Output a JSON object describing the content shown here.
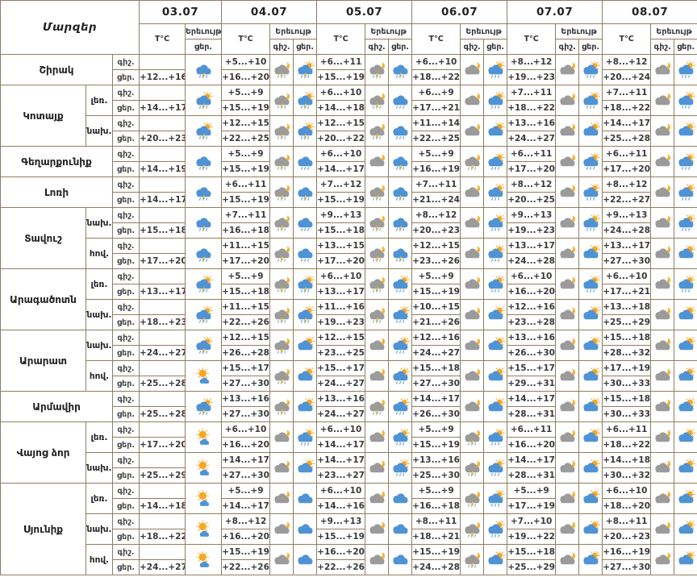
{
  "header": {
    "regions_label": "Մարզեր",
    "temp_label": "T°C",
    "phenomenon_label": "Երեւույթ",
    "night_label": "գիշ.",
    "day_label": "ցեր.",
    "dates": [
      "03.07",
      "04.07",
      "05.07",
      "06.07",
      "07.07",
      "08.07"
    ],
    "first_date_has_day_icon_only": true
  },
  "colors": {
    "border": "#8f7e60",
    "cloud_day": "#4f93d4",
    "cloud_night": "#9b9b9b",
    "sun": "#f6a723",
    "moon": "#f1b33c",
    "bolt": "#fdd03b",
    "rain": "#6ba3d6",
    "night_rain": "#92aec7",
    "text": "#3a3a3a"
  },
  "icon_types": {
    "night-cloud": "gray cloud with crescent moon",
    "night-storm": "gray cloud with moon, lightning and rain",
    "blue-cloud": "blue cloud",
    "rain": "blue cloud with rain",
    "storm": "blue cloud with lightning and rain",
    "sun-rain": "sun behind blue cloud with rain",
    "sun-storm": "sun behind blue cloud with lightning and rain",
    "sun-cloud": "sun behind blue cloud",
    "mostly-sunny": "sun with small cloud"
  },
  "regions": [
    {
      "name": "Շիրակ",
      "rows": [
        {
          "zone": "",
          "forecast": [
            {
              "n": "",
              "d": "+12...+16",
              "di": "storm"
            },
            {
              "n": "+5...+10",
              "d": "+16...+20",
              "ni": "night-storm",
              "di": "sun-storm"
            },
            {
              "n": "+6...+11",
              "d": "+15...+19",
              "ni": "night-storm",
              "di": "storm"
            },
            {
              "n": "+6...+10",
              "d": "+18...+22",
              "ni": "night-cloud",
              "di": "sun-rain"
            },
            {
              "n": "+8...+12",
              "d": "+19...+23",
              "ni": "night-cloud",
              "di": "sun-rain"
            },
            {
              "n": "+8...+12",
              "d": "+20...+24",
              "ni": "night-cloud",
              "di": "sun-rain"
            }
          ]
        }
      ]
    },
    {
      "name": "Կոտայք",
      "rows": [
        {
          "zone": "լեռ.",
          "forecast": [
            {
              "n": "",
              "d": "+14...+17",
              "di": "sun-storm"
            },
            {
              "n": "+5...+9",
              "d": "+15...+19",
              "ni": "night-storm",
              "di": "sun-storm"
            },
            {
              "n": "+6...+10",
              "d": "+14...+18",
              "ni": "night-storm",
              "di": "rain"
            },
            {
              "n": "+6...+9",
              "d": "+17...+21",
              "ni": "night-cloud",
              "di": "sun-rain"
            },
            {
              "n": "+7...+11",
              "d": "+18...+22",
              "ni": "night-cloud",
              "di": "sun-rain"
            },
            {
              "n": "+7...+11",
              "d": "+18...+22",
              "ni": "night-cloud",
              "di": "sun-rain"
            }
          ]
        },
        {
          "zone": "նախ.",
          "forecast": [
            {
              "n": "",
              "d": "+20...+23",
              "di": "sun-storm"
            },
            {
              "n": "+12...+15",
              "d": "+22...+25",
              "ni": "night-storm",
              "di": "sun-storm"
            },
            {
              "n": "+12...+15",
              "d": "+20...+22",
              "ni": "night-storm",
              "di": "rain"
            },
            {
              "n": "+11...+14",
              "d": "+22...+25",
              "ni": "night-cloud",
              "di": "sun-cloud"
            },
            {
              "n": "+13...+16",
              "d": "+24...+27",
              "ni": "night-cloud",
              "di": "sun-cloud"
            },
            {
              "n": "+14...+17",
              "d": "+25...+28",
              "ni": "night-cloud",
              "di": "sun-cloud"
            }
          ]
        }
      ]
    },
    {
      "name": "Գեղարքունիք",
      "rows": [
        {
          "zone": "",
          "forecast": [
            {
              "n": "",
              "d": "+14...+19",
              "di": "storm"
            },
            {
              "n": "+5...+9",
              "d": "+15...+19",
              "ni": "night-storm",
              "di": "rain"
            },
            {
              "n": "+6...+10",
              "d": "+14...+17",
              "ni": "night-cloud",
              "di": "storm"
            },
            {
              "n": "+5...+9",
              "d": "+16...+19",
              "ni": "night-storm",
              "di": "sun-rain"
            },
            {
              "n": "+6...+11",
              "d": "+17...+20",
              "ni": "night-cloud",
              "di": "sun-rain"
            },
            {
              "n": "+6...+11",
              "d": "+17...+20",
              "ni": "night-cloud",
              "di": "sun-rain"
            }
          ]
        }
      ]
    },
    {
      "name": "Լոռի",
      "rows": [
        {
          "zone": "",
          "forecast": [
            {
              "n": "",
              "d": "+14...+17",
              "di": "storm"
            },
            {
              "n": "+6...+11",
              "d": "+15...+19",
              "ni": "night-storm",
              "di": "storm"
            },
            {
              "n": "+7...+12",
              "d": "+15...+19",
              "ni": "night-storm",
              "di": "storm"
            },
            {
              "n": "+7...+11",
              "d": "+21...+24",
              "ni": "night-cloud",
              "di": "sun-rain"
            },
            {
              "n": "+8...+12",
              "d": "+20...+25",
              "ni": "night-cloud",
              "di": "sun-rain"
            },
            {
              "n": "+8...+12",
              "d": "+22...+27",
              "ni": "night-cloud",
              "di": "sun-rain"
            }
          ]
        }
      ]
    },
    {
      "name": "Տավուշ",
      "rows": [
        {
          "zone": "նախ.",
          "forecast": [
            {
              "n": "",
              "d": "+15...+18",
              "di": "storm"
            },
            {
              "n": "+7...+11",
              "d": "+16...+18",
              "ni": "night-storm",
              "di": "rain"
            },
            {
              "n": "+9...+13",
              "d": "+15...+18",
              "ni": "night-storm",
              "di": "storm"
            },
            {
              "n": "+8...+12",
              "d": "+20...+23",
              "ni": "night-cloud",
              "di": "sun-rain"
            },
            {
              "n": "+9...+13",
              "d": "+19...+23",
              "ni": "night-cloud",
              "di": "sun-rain"
            },
            {
              "n": "+9...+13",
              "d": "+24...+28",
              "ni": "night-cloud",
              "di": "sun-rain"
            }
          ]
        },
        {
          "zone": "հով.",
          "forecast": [
            {
              "n": "",
              "d": "+17...+20",
              "di": "storm"
            },
            {
              "n": "+11...+15",
              "d": "+17...+20",
              "ni": "night-storm",
              "di": "rain"
            },
            {
              "n": "+13...+15",
              "d": "+17...+20",
              "ni": "night-storm",
              "di": "storm"
            },
            {
              "n": "+12...+15",
              "d": "+23...+26",
              "ni": "night-cloud",
              "di": "sun-rain"
            },
            {
              "n": "+13...+17",
              "d": "+24...+28",
              "ni": "night-cloud",
              "di": "sun-cloud"
            },
            {
              "n": "+13...+17",
              "d": "+27...+30",
              "ni": "night-cloud",
              "di": "sun-cloud"
            }
          ]
        }
      ]
    },
    {
      "name": "Արագածոտն",
      "rows": [
        {
          "zone": "լեռ.",
          "forecast": [
            {
              "n": "",
              "d": "+13...+17",
              "di": "sun-storm"
            },
            {
              "n": "+5...+9",
              "d": "+15...+18",
              "ni": "night-storm",
              "di": "sun-storm"
            },
            {
              "n": "+6...+10",
              "d": "+13...+17",
              "ni": "night-storm",
              "di": "sun-rain"
            },
            {
              "n": "+5...+9",
              "d": "+15...+19",
              "ni": "night-cloud",
              "di": "sun-rain"
            },
            {
              "n": "+6...+10",
              "d": "+16...+20",
              "ni": "night-cloud",
              "di": "sun-rain"
            },
            {
              "n": "+6...+10",
              "d": "+17...+21",
              "ni": "night-cloud",
              "di": "sun-rain"
            }
          ]
        },
        {
          "zone": "նախ.",
          "forecast": [
            {
              "n": "",
              "d": "+18...+23",
              "di": "sun-storm"
            },
            {
              "n": "+11...+15",
              "d": "+22...+26",
              "ni": "night-storm",
              "di": "sun-storm"
            },
            {
              "n": "+11...+16",
              "d": "+19...+23",
              "ni": "night-storm",
              "di": "sun-rain"
            },
            {
              "n": "+10...+15",
              "d": "+21...+26",
              "ni": "night-cloud",
              "di": "sun-cloud"
            },
            {
              "n": "+12...+16",
              "d": "+23...+28",
              "ni": "night-cloud",
              "di": "sun-cloud"
            },
            {
              "n": "+13...+18",
              "d": "+25...+29",
              "ni": "night-cloud",
              "di": "sun-cloud"
            }
          ]
        }
      ]
    },
    {
      "name": "Արարատ",
      "rows": [
        {
          "zone": "նախ.",
          "forecast": [
            {
              "n": "",
              "d": "+24...+27",
              "di": "sun-storm"
            },
            {
              "n": "+12...+15",
              "d": "+26...+28",
              "ni": "night-storm",
              "di": "sun-cloud"
            },
            {
              "n": "+12...+15",
              "d": "+23...+25",
              "ni": "night-cloud",
              "di": "sun-rain"
            },
            {
              "n": "+12...+16",
              "d": "+24...+27",
              "ni": "night-cloud",
              "di": "sun-cloud"
            },
            {
              "n": "+13...+16",
              "d": "+26...+30",
              "ni": "night-cloud",
              "di": "sun-cloud"
            },
            {
              "n": "+15...+18",
              "d": "+28...+32",
              "ni": "night-cloud",
              "di": "sun-cloud"
            }
          ]
        },
        {
          "zone": "հով.",
          "forecast": [
            {
              "n": "",
              "d": "+25...+28",
              "di": "mostly-sunny"
            },
            {
              "n": "+15...+17",
              "d": "+27...+30",
              "ni": "night-storm",
              "di": "sun-cloud"
            },
            {
              "n": "+15...+17",
              "d": "+24...+27",
              "ni": "night-cloud",
              "di": "sun-rain"
            },
            {
              "n": "+15...+18",
              "d": "+27...+30",
              "ni": "night-cloud",
              "di": "sun-cloud"
            },
            {
              "n": "+15...+17",
              "d": "+29...+31",
              "ni": "night-cloud",
              "di": "sun-cloud"
            },
            {
              "n": "+17...+19",
              "d": "+30...+33",
              "ni": "night-cloud",
              "di": "sun-cloud"
            }
          ]
        }
      ]
    },
    {
      "name": "Արմավիր",
      "rows": [
        {
          "zone": "",
          "forecast": [
            {
              "n": "",
              "d": "+25...+28",
              "di": "sun-storm"
            },
            {
              "n": "+13...+16",
              "d": "+27...+30",
              "ni": "night-storm",
              "di": "sun-cloud"
            },
            {
              "n": "+13...+16",
              "d": "+24...+27",
              "ni": "night-storm",
              "di": "sun-rain"
            },
            {
              "n": "+14...+17",
              "d": "+26...+30",
              "ni": "night-cloud",
              "di": "sun-cloud"
            },
            {
              "n": "+14...+17",
              "d": "+28...+31",
              "ni": "night-cloud",
              "di": "sun-cloud"
            },
            {
              "n": "+15...+18",
              "d": "+30...+33",
              "ni": "night-cloud",
              "di": "sun-cloud"
            }
          ]
        }
      ]
    },
    {
      "name": "Վայոց ձոր",
      "rows": [
        {
          "zone": "լեռ.",
          "forecast": [
            {
              "n": "",
              "d": "+17...+20",
              "di": "mostly-sunny"
            },
            {
              "n": "+6...+10",
              "d": "+16...+20",
              "ni": "night-cloud",
              "di": "sun-rain"
            },
            {
              "n": "+6...+10",
              "d": "+14...+17",
              "ni": "night-cloud",
              "di": "sun-rain"
            },
            {
              "n": "+5...+9",
              "d": "+15...+19",
              "ni": "night-storm",
              "di": "sun-rain"
            },
            {
              "n": "+6...+11",
              "d": "+16...+20",
              "ni": "night-cloud",
              "di": "sun-cloud"
            },
            {
              "n": "+6...+11",
              "d": "+18...+22",
              "ni": "night-cloud",
              "di": "sun-cloud"
            }
          ]
        },
        {
          "zone": "նախ.",
          "forecast": [
            {
              "n": "",
              "d": "+25...+29",
              "di": "mostly-sunny"
            },
            {
              "n": "+14...+17",
              "d": "+27...+30",
              "ni": "night-cloud",
              "di": "sun-cloud"
            },
            {
              "n": "+14...+17",
              "d": "+23...+27",
              "ni": "night-cloud",
              "di": "sun-rain"
            },
            {
              "n": "+13...+16",
              "d": "+25...+30",
              "ni": "night-storm",
              "di": "sun-rain"
            },
            {
              "n": "+14...+17",
              "d": "+28...+31",
              "ni": "night-cloud",
              "di": "sun-cloud"
            },
            {
              "n": "+14...+18",
              "d": "+30...+32",
              "ni": "night-cloud",
              "di": "sun-cloud"
            }
          ]
        }
      ]
    },
    {
      "name": "Սյունիք",
      "rows": [
        {
          "zone": "լեռ.",
          "forecast": [
            {
              "n": "",
              "d": "+14...+18",
              "di": "mostly-sunny"
            },
            {
              "n": "+5...+9",
              "d": "+14...+17",
              "ni": "night-cloud",
              "di": "blue-cloud"
            },
            {
              "n": "+6...+10",
              "d": "+14...+16",
              "ni": "night-cloud",
              "di": "blue-cloud"
            },
            {
              "n": "+5...+9",
              "d": "+16...+18",
              "ni": "night-storm",
              "di": "sun-rain"
            },
            {
              "n": "+5...+9",
              "d": "+17...+19",
              "ni": "night-cloud",
              "di": "sun-cloud"
            },
            {
              "n": "+6...+10",
              "d": "+18...+20",
              "ni": "night-cloud",
              "di": "sun-cloud"
            }
          ]
        },
        {
          "zone": "նախ.",
          "forecast": [
            {
              "n": "",
              "d": "+18...+22",
              "di": "mostly-sunny"
            },
            {
              "n": "+8...+12",
              "d": "+16...+20",
              "ni": "night-cloud",
              "di": "blue-cloud"
            },
            {
              "n": "+9...+13",
              "d": "+15...+19",
              "ni": "night-cloud",
              "di": "blue-cloud"
            },
            {
              "n": "+8...+11",
              "d": "+18...+21",
              "ni": "night-storm",
              "di": "sun-rain"
            },
            {
              "n": "+7...+10",
              "d": "+19...+22",
              "ni": "night-cloud",
              "di": "sun-cloud"
            },
            {
              "n": "+8...+11",
              "d": "+20...+23",
              "ni": "night-cloud",
              "di": "sun-cloud"
            }
          ]
        },
        {
          "zone": "հով.",
          "forecast": [
            {
              "n": "",
              "d": "+24...+27",
              "di": "mostly-sunny"
            },
            {
              "n": "+15...+19",
              "d": "+22...+26",
              "ni": "night-cloud",
              "di": "blue-cloud"
            },
            {
              "n": "+16...+20",
              "d": "+22...+26",
              "ni": "night-cloud",
              "di": "blue-cloud"
            },
            {
              "n": "+15...+19",
              "d": "+24...+28",
              "ni": "night-storm",
              "di": "sun-cloud"
            },
            {
              "n": "+15...+18",
              "d": "+25...+29",
              "ni": "night-cloud",
              "di": "sun-cloud"
            },
            {
              "n": "+16...+19",
              "d": "+27...+30",
              "ni": "night-cloud",
              "di": "sun-cloud"
            }
          ]
        }
      ]
    }
  ]
}
